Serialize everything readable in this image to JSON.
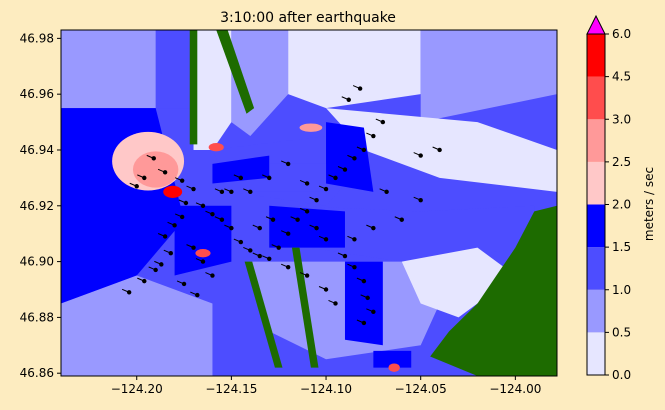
{
  "chart_data": {
    "type": "heatmap",
    "title": "3:10:00 after earthquake",
    "xlabel": "",
    "ylabel": "",
    "xlim": [
      -124.24,
      -123.978
    ],
    "ylim": [
      46.859,
      46.983
    ],
    "xticks": [
      -124.2,
      -124.15,
      -124.1,
      -124.05,
      -124.0
    ],
    "xtick_labels": [
      "−124.20",
      "−124.15",
      "−124.10",
      "−124.05",
      "−124.00"
    ],
    "yticks": [
      46.86,
      46.88,
      46.9,
      46.92,
      46.94,
      46.96,
      46.98
    ],
    "ytick_labels": [
      "46.86",
      "46.88",
      "46.90",
      "46.92",
      "46.94",
      "46.96",
      "46.98"
    ],
    "colorbar": {
      "label": "meters / sec",
      "levels": [
        0.0,
        0.5,
        1.0,
        1.5,
        2.0,
        2.5,
        3.0,
        4.5,
        6.0
      ],
      "level_labels": [
        "0.0",
        "0.5",
        "1.0",
        "1.5",
        "2.0",
        "2.5",
        "3.0",
        "4.5",
        "6.0"
      ],
      "colors": [
        "#e6e6ff",
        "#9999ff",
        "#4d4dff",
        "#0000ff",
        "#ffc8c8",
        "#ff9999",
        "#ff4d4d",
        "#ff0000"
      ],
      "extend_color": "#ff00ff",
      "extend": "max"
    },
    "land_color": "#1d6b00",
    "regions": [
      {
        "level": 1,
        "points": [
          [
            -124.24,
            46.983
          ],
          [
            -124.19,
            46.983
          ],
          [
            -124.19,
            46.955
          ],
          [
            -124.24,
            46.955
          ]
        ]
      },
      {
        "level": 2,
        "points": [
          [
            -124.24,
            46.955
          ],
          [
            -124.17,
            46.955
          ],
          [
            -124.17,
            46.925
          ],
          [
            -124.24,
            46.925
          ]
        ]
      },
      {
        "level": 3,
        "points": [
          [
            -124.24,
            46.955
          ],
          [
            -124.19,
            46.955
          ],
          [
            -124.175,
            46.915
          ],
          [
            -124.2,
            46.895
          ],
          [
            -124.24,
            46.885
          ]
        ]
      },
      {
        "level": 1,
        "points": [
          [
            -124.24,
            46.885
          ],
          [
            -124.2,
            46.895
          ],
          [
            -124.16,
            46.885
          ],
          [
            -124.16,
            46.859
          ],
          [
            -124.24,
            46.859
          ]
        ]
      },
      {
        "level": 0,
        "points": [
          [
            -124.17,
            46.983
          ],
          [
            -124.15,
            46.983
          ],
          [
            -124.15,
            46.95
          ],
          [
            -124.16,
            46.94
          ],
          [
            -124.17,
            46.94
          ]
        ]
      },
      {
        "level": 1,
        "points": [
          [
            -124.15,
            46.983
          ],
          [
            -124.12,
            46.983
          ],
          [
            -124.12,
            46.96
          ],
          [
            -124.14,
            46.945
          ],
          [
            -124.15,
            46.95
          ]
        ]
      },
      {
        "level": 0,
        "points": [
          [
            -124.12,
            46.983
          ],
          [
            -124.05,
            46.983
          ],
          [
            -124.05,
            46.96
          ],
          [
            -124.1,
            46.955
          ],
          [
            -124.12,
            46.96
          ]
        ]
      },
      {
        "level": 1,
        "points": [
          [
            -124.05,
            46.983
          ],
          [
            -123.978,
            46.983
          ],
          [
            -123.978,
            46.96
          ],
          [
            -124.05,
            46.95
          ]
        ]
      },
      {
        "level": 0,
        "points": [
          [
            -124.1,
            46.955
          ],
          [
            -124.02,
            46.95
          ],
          [
            -123.978,
            46.94
          ],
          [
            -123.978,
            46.925
          ],
          [
            -124.04,
            46.93
          ],
          [
            -124.08,
            46.94
          ]
        ]
      },
      {
        "level": 2,
        "points": [
          [
            -124.16,
            46.94
          ],
          [
            -124.1,
            46.945
          ],
          [
            -124.08,
            46.935
          ],
          [
            -124.1,
            46.92
          ],
          [
            -124.15,
            46.925
          ]
        ]
      },
      {
        "level": 2,
        "points": [
          [
            -124.12,
            46.92
          ],
          [
            -124.05,
            46.918
          ],
          [
            -123.99,
            46.92
          ],
          [
            -123.99,
            46.905
          ],
          [
            -124.06,
            46.9
          ],
          [
            -124.11,
            46.905
          ]
        ]
      },
      {
        "level": 1,
        "points": [
          [
            -124.14,
            46.9
          ],
          [
            -124.06,
            46.9
          ],
          [
            -124.04,
            46.885
          ],
          [
            -124.05,
            46.87
          ],
          [
            -124.1,
            46.865
          ],
          [
            -124.13,
            46.875
          ]
        ]
      },
      {
        "level": 0,
        "points": [
          [
            -124.06,
            46.9
          ],
          [
            -124.02,
            46.905
          ],
          [
            -124.0,
            46.895
          ],
          [
            -124.03,
            46.88
          ],
          [
            -124.05,
            46.885
          ]
        ]
      },
      {
        "level": 3,
        "points": [
          [
            -124.18,
            46.92
          ],
          [
            -124.15,
            46.92
          ],
          [
            -124.15,
            46.9
          ],
          [
            -124.18,
            46.895
          ]
        ]
      },
      {
        "level": 3,
        "points": [
          [
            -124.1,
            46.95
          ],
          [
            -124.08,
            46.948
          ],
          [
            -124.075,
            46.925
          ],
          [
            -124.1,
            46.928
          ]
        ]
      },
      {
        "level": 3,
        "points": [
          [
            -124.13,
            46.92
          ],
          [
            -124.09,
            46.918
          ],
          [
            -124.09,
            46.905
          ],
          [
            -124.13,
            46.905
          ]
        ]
      },
      {
        "level": 3,
        "points": [
          [
            -124.09,
            46.9
          ],
          [
            -124.07,
            46.9
          ],
          [
            -124.07,
            46.87
          ],
          [
            -124.09,
            46.872
          ]
        ]
      },
      {
        "level": 3,
        "points": [
          [
            -124.075,
            46.868
          ],
          [
            -124.055,
            46.868
          ],
          [
            -124.055,
            46.862
          ],
          [
            -124.075,
            46.862
          ]
        ]
      },
      {
        "level": 2,
        "points": [
          [
            -124.14,
            46.935
          ],
          [
            -124.1,
            46.935
          ],
          [
            -124.1,
            46.925
          ],
          [
            -124.14,
            46.925
          ]
        ]
      },
      {
        "level": 3,
        "points": [
          [
            -124.16,
            46.935
          ],
          [
            -124.13,
            46.938
          ],
          [
            -124.13,
            46.93
          ],
          [
            -124.16,
            46.928
          ]
        ]
      }
    ],
    "hotspots": [
      {
        "level": 4,
        "center": [
          -124.194,
          46.936
        ],
        "radius": [
          0.019,
          0.0105
        ]
      },
      {
        "level": 5,
        "center": [
          -124.19,
          46.933
        ],
        "radius": [
          0.012,
          0.0065
        ]
      },
      {
        "level": 7,
        "center": [
          -124.181,
          46.925
        ],
        "radius": [
          0.005,
          0.0022
        ]
      },
      {
        "level": 6,
        "center": [
          -124.165,
          46.903
        ],
        "radius": [
          0.004,
          0.0015
        ]
      },
      {
        "level": 6,
        "center": [
          -124.158,
          46.941
        ],
        "radius": [
          0.004,
          0.0015
        ]
      },
      {
        "level": 5,
        "center": [
          -124.108,
          46.948
        ],
        "radius": [
          0.006,
          0.0015
        ]
      },
      {
        "level": 6,
        "center": [
          -124.064,
          46.862
        ],
        "radius": [
          0.003,
          0.0015
        ]
      }
    ],
    "land": [
      [
        [
          -124.02,
          46.859
        ],
        [
          -123.978,
          46.859
        ],
        [
          -123.978,
          46.92
        ],
        [
          -123.99,
          46.918
        ],
        [
          -124.0,
          46.905
        ],
        [
          -124.01,
          46.895
        ],
        [
          -124.02,
          46.885
        ],
        [
          -124.035,
          46.875
        ],
        [
          -124.045,
          46.866
        ]
      ],
      [
        [
          -124.172,
          46.983
        ],
        [
          -124.168,
          46.983
        ],
        [
          -124.168,
          46.942
        ],
        [
          -124.172,
          46.942
        ]
      ],
      [
        [
          -124.158,
          46.983
        ],
        [
          -124.152,
          46.983
        ],
        [
          -124.138,
          46.955
        ],
        [
          -124.142,
          46.953
        ]
      ],
      [
        [
          -124.143,
          46.9
        ],
        [
          -124.139,
          46.9
        ],
        [
          -124.123,
          46.862
        ],
        [
          -124.127,
          46.862
        ]
      ],
      [
        [
          -124.118,
          46.905
        ],
        [
          -124.114,
          46.905
        ],
        [
          -124.104,
          46.862
        ],
        [
          -124.108,
          46.862
        ]
      ]
    ],
    "drifters": [
      [
        -124.204,
        46.889
      ],
      [
        -124.196,
        46.893
      ],
      [
        -124.19,
        46.897
      ],
      [
        -124.187,
        46.899
      ],
      [
        -124.182,
        46.903
      ],
      [
        -124.185,
        46.909
      ],
      [
        -124.18,
        46.913
      ],
      [
        -124.176,
        46.916
      ],
      [
        -124.174,
        46.921
      ],
      [
        -124.17,
        46.926
      ],
      [
        -124.176,
        46.929
      ],
      [
        -124.185,
        46.932
      ],
      [
        -124.191,
        46.937
      ],
      [
        -124.196,
        46.93
      ],
      [
        -124.2,
        46.927
      ],
      [
        -124.165,
        46.92
      ],
      [
        -124.16,
        46.917
      ],
      [
        -124.155,
        46.915
      ],
      [
        -124.15,
        46.912
      ],
      [
        -124.145,
        46.907
      ],
      [
        -124.14,
        46.904
      ],
      [
        -124.135,
        46.902
      ],
      [
        -124.13,
        46.901
      ],
      [
        -124.125,
        46.905
      ],
      [
        -124.12,
        46.91
      ],
      [
        -124.115,
        46.915
      ],
      [
        -124.11,
        46.918
      ],
      [
        -124.105,
        46.922
      ],
      [
        -124.1,
        46.926
      ],
      [
        -124.095,
        46.93
      ],
      [
        -124.09,
        46.933
      ],
      [
        -124.085,
        46.937
      ],
      [
        -124.08,
        46.94
      ],
      [
        -124.075,
        46.945
      ],
      [
        -124.07,
        46.95
      ],
      [
        -124.088,
        46.958
      ],
      [
        -124.082,
        46.962
      ],
      [
        -124.05,
        46.938
      ],
      [
        -124.04,
        46.94
      ],
      [
        -124.068,
        46.925
      ],
      [
        -124.05,
        46.922
      ],
      [
        -124.06,
        46.915
      ],
      [
        -124.075,
        46.912
      ],
      [
        -124.085,
        46.908
      ],
      [
        -124.09,
        46.902
      ],
      [
        -124.085,
        46.898
      ],
      [
        -124.08,
        46.893
      ],
      [
        -124.078,
        46.887
      ],
      [
        -124.075,
        46.882
      ],
      [
        -124.08,
        46.878
      ],
      [
        -124.095,
        46.885
      ],
      [
        -124.1,
        46.89
      ],
      [
        -124.11,
        46.895
      ],
      [
        -124.12,
        46.898
      ],
      [
        -124.15,
        46.925
      ],
      [
        -124.145,
        46.93
      ],
      [
        -124.14,
        46.925
      ],
      [
        -124.13,
        46.93
      ],
      [
        -124.12,
        46.935
      ],
      [
        -124.11,
        46.928
      ],
      [
        -124.165,
        46.9
      ],
      [
        -124.17,
        46.905
      ],
      [
        -124.16,
        46.895
      ],
      [
        -124.175,
        46.892
      ],
      [
        -124.168,
        46.888
      ],
      [
        -124.105,
        46.912
      ],
      [
        -124.1,
        46.908
      ],
      [
        -124.128,
        46.915
      ],
      [
        -124.135,
        46.912
      ],
      [
        -124.155,
        46.925
      ]
    ]
  }
}
